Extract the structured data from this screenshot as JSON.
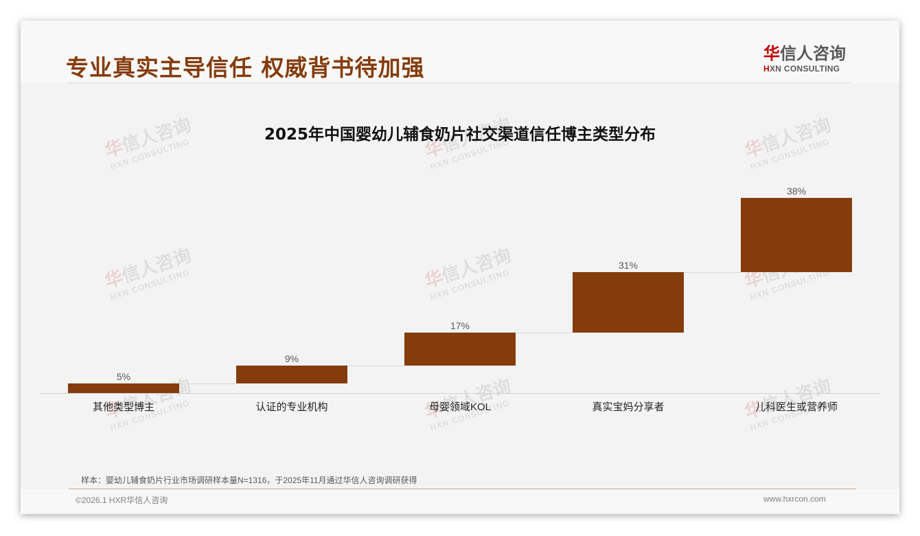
{
  "header": {
    "title": "专业真实主导信任 权威背书待加强",
    "logo": {
      "cn_accent": "华",
      "cn_rest": "信人咨询",
      "en_accent": "H",
      "en_rest": "XN CONSULTING"
    }
  },
  "watermark": {
    "cn_accent": "华",
    "cn_rest": "信人咨询",
    "en": "HXN CONSULTING"
  },
  "colors": {
    "title": "#843c0c",
    "bar": "#843c0c",
    "logo_accent": "#c00000"
  },
  "chart_data": {
    "type": "bar",
    "subtype": "waterfall",
    "title": "2025年中国婴幼儿辅食奶片社交渠道信任博主类型分布",
    "categories": [
      "其他类型博主",
      "认证的专业机构",
      "母婴领域KOL",
      "真实宝妈分享者",
      "儿科医生或营养师"
    ],
    "values": [
      5,
      9,
      17,
      31,
      38
    ],
    "value_labels": [
      "5%",
      "9%",
      "17%",
      "31%",
      "38%"
    ],
    "cumulative_start": [
      0,
      5,
      14,
      31,
      62
    ],
    "cumulative_end": [
      5,
      14,
      31,
      62,
      100
    ],
    "unit": "%",
    "xlabel": "",
    "ylabel": "",
    "ylim": [
      0,
      100
    ],
    "grid": false,
    "legend": "none"
  },
  "footer": {
    "note": "样本：婴幼儿辅食奶片行业市场调研样本量N=1316，于2025年11月通过华信人咨询调研获得",
    "copyright": "©2026.1 HXR华信人咨询",
    "website": "www.hxrcon.com"
  }
}
